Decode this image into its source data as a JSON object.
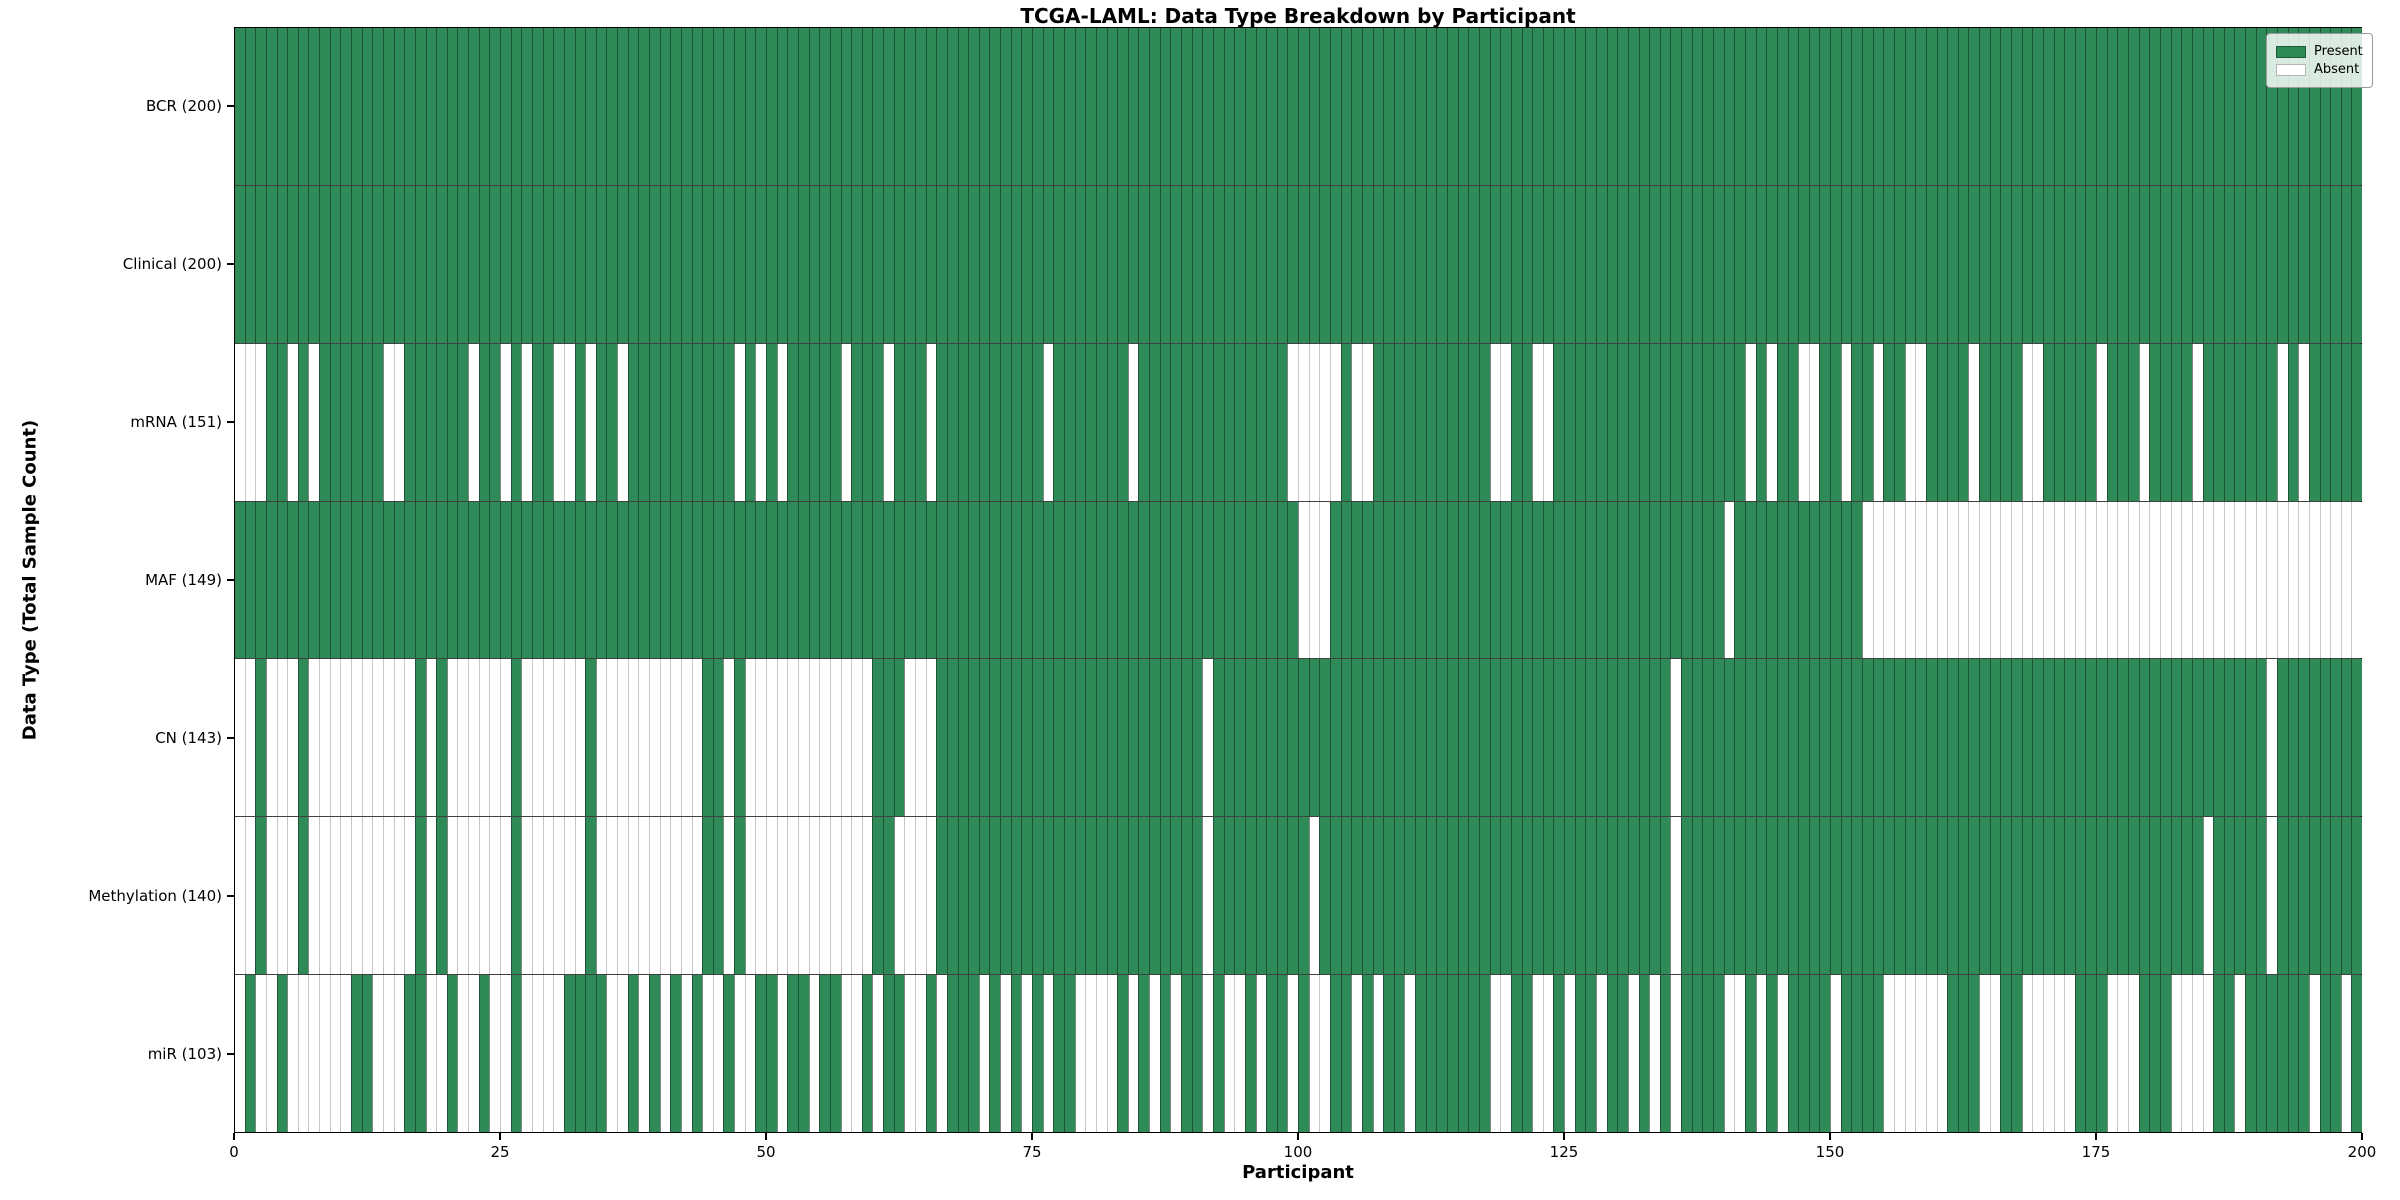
{
  "title": "TCGA-LAML: Data Type Breakdown by Participant",
  "axes": {
    "x_label": "Participant",
    "y_label": "Data Type (Total Sample Count)",
    "x_ticks": [
      0,
      25,
      50,
      75,
      100,
      125,
      150,
      175,
      200
    ],
    "x_range": [
      0,
      200
    ]
  },
  "legend": {
    "position": "upper right",
    "items": [
      {
        "label": "Present",
        "color": "#2E8B57"
      },
      {
        "label": "Absent",
        "color": "#FFFFFF"
      }
    ]
  },
  "colors": {
    "present": "#2E8B57",
    "absent": "#FFFFFF",
    "edge_on_present": "rgba(20,35,25,0.55)",
    "edge_on_absent": "#c6c6c6",
    "row_separator": "rgba(0,0,0,0.75)",
    "spine": "#000000"
  },
  "chart_data": {
    "type": "heatmap",
    "title": "TCGA-LAML: Data Type Breakdown by Participant",
    "xlabel": "Participant",
    "ylabel": "Data Type (Total Sample Count)",
    "x_ticks": [
      0,
      25,
      50,
      75,
      100,
      125,
      150,
      175,
      200
    ],
    "n_participants": 200,
    "legend": [
      "Present",
      "Absent"
    ],
    "rows": [
      {
        "name": "BCR",
        "label": "BCR (200)",
        "total_present": 200,
        "absent_participants": []
      },
      {
        "name": "Clinical",
        "label": "Clinical (200)",
        "total_present": 200,
        "absent_participants": []
      },
      {
        "name": "mRNA",
        "label": "mRNA (151)",
        "total_present": 151,
        "absent_participants": [
          0,
          1,
          2,
          5,
          7,
          14,
          15,
          22,
          25,
          27,
          30,
          31,
          33,
          36,
          47,
          49,
          51,
          57,
          61,
          65,
          76,
          84,
          99,
          100,
          101,
          102,
          103,
          105,
          106,
          118,
          119,
          122,
          123,
          142,
          144,
          147,
          148,
          151,
          154,
          157,
          158,
          163,
          168,
          169,
          175,
          179,
          184,
          192,
          194
        ]
      },
      {
        "name": "MAF",
        "label": "MAF (149)",
        "total_present": 149,
        "absent_participants": [
          100,
          101,
          102,
          140,
          153,
          154,
          155,
          156,
          157,
          158,
          159,
          160,
          161,
          162,
          163,
          164,
          165,
          166,
          167,
          168,
          169,
          170,
          171,
          172,
          173,
          174,
          175,
          176,
          177,
          178,
          179,
          180,
          181,
          182,
          183,
          184,
          185,
          186,
          187,
          188,
          189,
          190,
          191,
          192,
          193,
          194,
          195,
          196,
          197,
          198,
          199
        ]
      },
      {
        "name": "CN",
        "label": "CN (143)",
        "total_present": 143,
        "absent_participants": [
          0,
          1,
          3,
          4,
          5,
          7,
          8,
          9,
          10,
          11,
          12,
          13,
          14,
          15,
          16,
          18,
          20,
          21,
          22,
          23,
          24,
          25,
          27,
          28,
          29,
          30,
          31,
          32,
          34,
          35,
          36,
          37,
          38,
          39,
          40,
          41,
          42,
          43,
          46,
          48,
          49,
          50,
          51,
          52,
          53,
          54,
          55,
          56,
          57,
          58,
          59,
          63,
          64,
          65,
          91,
          135,
          191
        ]
      },
      {
        "name": "Methylation",
        "label": "Methylation (140)",
        "total_present": 140,
        "absent_participants": [
          0,
          1,
          3,
          4,
          5,
          7,
          8,
          9,
          10,
          11,
          12,
          13,
          14,
          15,
          16,
          18,
          20,
          21,
          22,
          23,
          24,
          25,
          27,
          28,
          29,
          30,
          31,
          32,
          34,
          35,
          36,
          37,
          38,
          39,
          40,
          41,
          42,
          43,
          46,
          48,
          49,
          50,
          51,
          52,
          53,
          54,
          55,
          56,
          57,
          58,
          59,
          62,
          63,
          64,
          65,
          91,
          101,
          135,
          185,
          191
        ]
      },
      {
        "name": "miR",
        "label": "miR (103)",
        "total_present": 103,
        "absent_participants": [
          0,
          2,
          3,
          5,
          6,
          7,
          8,
          9,
          10,
          13,
          14,
          15,
          18,
          19,
          21,
          22,
          24,
          25,
          27,
          28,
          29,
          30,
          35,
          36,
          38,
          40,
          42,
          44,
          45,
          47,
          48,
          51,
          54,
          57,
          58,
          60,
          63,
          64,
          66,
          70,
          72,
          74,
          76,
          79,
          80,
          81,
          82,
          84,
          86,
          88,
          91,
          93,
          94,
          96,
          99,
          101,
          102,
          105,
          107,
          110,
          118,
          119,
          122,
          123,
          125,
          128,
          131,
          133,
          135,
          140,
          141,
          143,
          145,
          150,
          155,
          156,
          157,
          158,
          159,
          160,
          164,
          165,
          168,
          169,
          170,
          171,
          172,
          176,
          177,
          178,
          182,
          183,
          184,
          185,
          188,
          195,
          198
        ]
      }
    ]
  }
}
